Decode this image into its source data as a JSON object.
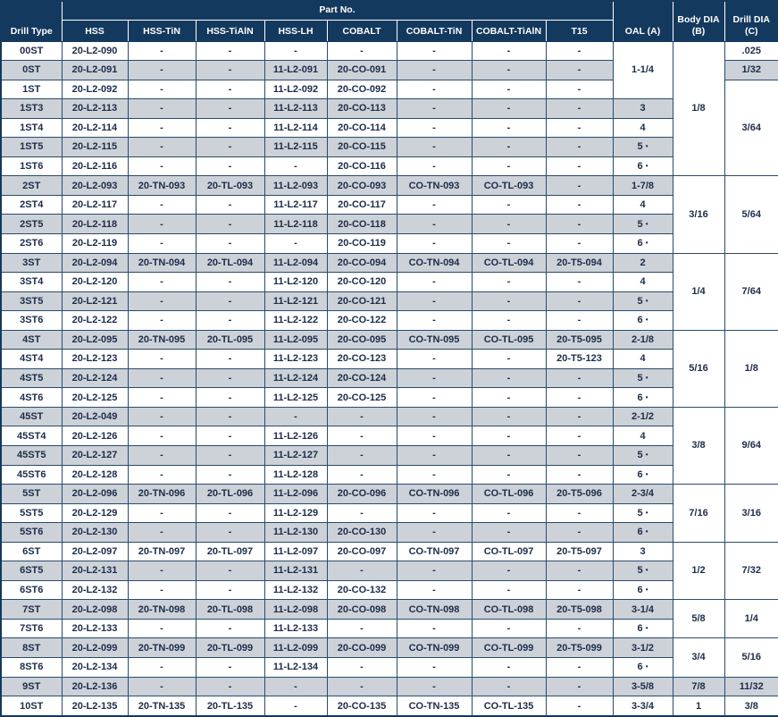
{
  "colors": {
    "header_bg": "#14395e",
    "header_text": "#ffffff",
    "row_alt_bg": "#ccd2d8",
    "grid_line": "#2a4a6b",
    "cell_text": "#1c2c49"
  },
  "table": {
    "header": {
      "drill_type": "Drill Type",
      "part_no": "Part No.",
      "part_columns": [
        "HSS",
        "HSS-TiN",
        "HSS-TiAlN",
        "HSS-LH",
        "COBALT",
        "COBALT-TiN",
        "COBALT-TiAlN",
        "T15"
      ],
      "oal": "OAL (A)",
      "body_dia": "Body DIA (B)",
      "drill_dia": "Drill DIA (C)"
    },
    "rows": [
      {
        "drill_type": "00ST",
        "parts": [
          "20-L2-090",
          "-",
          "-",
          "-",
          "-",
          "-",
          "-",
          "-"
        ],
        "oal": {
          "v": "1-1/4",
          "span": 3
        },
        "body": {
          "v": "1/8",
          "span": 7
        },
        "drill": {
          "v": ".025",
          "span": 1
        }
      },
      {
        "drill_type": "0ST",
        "parts": [
          "20-L2-091",
          "-",
          "-",
          "11-L2-091",
          "20-CO-091",
          "-",
          "-",
          "-"
        ],
        "drill": {
          "v": "1/32",
          "span": 1
        }
      },
      {
        "drill_type": "1ST",
        "parts": [
          "20-L2-092",
          "-",
          "-",
          "11-L2-092",
          "20-CO-092",
          "-",
          "-",
          "-"
        ],
        "drill": {
          "v": "3/64",
          "span": 5
        }
      },
      {
        "drill_type": "1ST3",
        "parts": [
          "20-L2-113",
          "-",
          "-",
          "11-L2-113",
          "20-CO-113",
          "-",
          "-",
          "-"
        ],
        "oal": {
          "v": "3",
          "span": 1
        }
      },
      {
        "drill_type": "1ST4",
        "parts": [
          "20-L2-114",
          "-",
          "-",
          "11-L2-114",
          "20-CO-114",
          "-",
          "-",
          "-"
        ],
        "oal": {
          "v": "4",
          "span": 1
        }
      },
      {
        "drill_type": "1ST5",
        "parts": [
          "20-L2-115",
          "-",
          "-",
          "11-L2-115",
          "20-CO-115",
          "-",
          "-",
          "-"
        ],
        "oal": {
          "v": "5 •",
          "span": 1
        }
      },
      {
        "drill_type": "1ST6",
        "parts": [
          "20-L2-116",
          "-",
          "-",
          "-",
          "20-CO-116",
          "-",
          "-",
          "-"
        ],
        "oal": {
          "v": "6 •",
          "span": 1
        }
      },
      {
        "drill_type": "2ST",
        "parts": [
          "20-L2-093",
          "20-TN-093",
          "20-TL-093",
          "11-L2-093",
          "20-CO-093",
          "CO-TN-093",
          "CO-TL-093",
          "-"
        ],
        "oal": {
          "v": "1-7/8",
          "span": 1
        },
        "body": {
          "v": "3/16",
          "span": 4
        },
        "drill": {
          "v": "5/64",
          "span": 4
        }
      },
      {
        "drill_type": "2ST4",
        "parts": [
          "20-L2-117",
          "-",
          "-",
          "11-L2-117",
          "20-CO-117",
          "-",
          "-",
          "-"
        ],
        "oal": {
          "v": "4",
          "span": 1
        }
      },
      {
        "drill_type": "2ST5",
        "parts": [
          "20-L2-118",
          "-",
          "-",
          "11-L2-118",
          "20-CO-118",
          "-",
          "-",
          "-"
        ],
        "oal": {
          "v": "5 •",
          "span": 1
        }
      },
      {
        "drill_type": "2ST6",
        "parts": [
          "20-L2-119",
          "-",
          "-",
          "-",
          "20-CO-119",
          "-",
          "-",
          "-"
        ],
        "oal": {
          "v": "6 •",
          "span": 1
        }
      },
      {
        "drill_type": "3ST",
        "parts": [
          "20-L2-094",
          "20-TN-094",
          "20-TL-094",
          "11-L2-094",
          "20-CO-094",
          "CO-TN-094",
          "CO-TL-094",
          "20-T5-094"
        ],
        "oal": {
          "v": "2",
          "span": 1
        },
        "body": {
          "v": "1/4",
          "span": 4
        },
        "drill": {
          "v": "7/64",
          "span": 4
        }
      },
      {
        "drill_type": "3ST4",
        "parts": [
          "20-L2-120",
          "-",
          "-",
          "11-L2-120",
          "20-CO-120",
          "-",
          "-",
          "-"
        ],
        "oal": {
          "v": "4",
          "span": 1
        }
      },
      {
        "drill_type": "3ST5",
        "parts": [
          "20-L2-121",
          "-",
          "-",
          "11-L2-121",
          "20-CO-121",
          "-",
          "-",
          "-"
        ],
        "oal": {
          "v": "5 •",
          "span": 1
        }
      },
      {
        "drill_type": "3ST6",
        "parts": [
          "20-L2-122",
          "-",
          "-",
          "11-L2-122",
          "20-CO-122",
          "-",
          "-",
          "-"
        ],
        "oal": {
          "v": "6 •",
          "span": 1
        }
      },
      {
        "drill_type": "4ST",
        "parts": [
          "20-L2-095",
          "20-TN-095",
          "20-TL-095",
          "11-L2-095",
          "20-CO-095",
          "CO-TN-095",
          "CO-TL-095",
          "20-T5-095"
        ],
        "oal": {
          "v": "2-1/8",
          "span": 1
        },
        "body": {
          "v": "5/16",
          "span": 4
        },
        "drill": {
          "v": "1/8",
          "span": 4
        }
      },
      {
        "drill_type": "4ST4",
        "parts": [
          "20-L2-123",
          "-",
          "-",
          "11-L2-123",
          "20-CO-123",
          "-",
          "-",
          "20-T5-123"
        ],
        "oal": {
          "v": "4",
          "span": 1
        }
      },
      {
        "drill_type": "4ST5",
        "parts": [
          "20-L2-124",
          "-",
          "-",
          "11-L2-124",
          "20-CO-124",
          "-",
          "-",
          "-"
        ],
        "oal": {
          "v": "5 •",
          "span": 1
        }
      },
      {
        "drill_type": "4ST6",
        "parts": [
          "20-L2-125",
          "-",
          "-",
          "11-L2-125",
          "20-CO-125",
          "-",
          "-",
          "-"
        ],
        "oal": {
          "v": "6 •",
          "span": 1
        }
      },
      {
        "drill_type": "45ST",
        "parts": [
          "20-L2-049",
          "-",
          "-",
          "-",
          "-",
          "-",
          "-",
          "-"
        ],
        "oal": {
          "v": "2-1/2",
          "span": 1
        },
        "body": {
          "v": "3/8",
          "span": 4
        },
        "drill": {
          "v": "9/64",
          "span": 4
        }
      },
      {
        "drill_type": "45ST4",
        "parts": [
          "20-L2-126",
          "-",
          "-",
          "11-L2-126",
          "-",
          "-",
          "-",
          "-"
        ],
        "oal": {
          "v": "4",
          "span": 1
        }
      },
      {
        "drill_type": "45ST5",
        "parts": [
          "20-L2-127",
          "-",
          "-",
          "11-L2-127",
          "-",
          "-",
          "-",
          "-"
        ],
        "oal": {
          "v": "5 •",
          "span": 1
        }
      },
      {
        "drill_type": "45ST6",
        "parts": [
          "20-L2-128",
          "-",
          "-",
          "11-L2-128",
          "-",
          "-",
          "-",
          "-"
        ],
        "oal": {
          "v": "6 •",
          "span": 1
        }
      },
      {
        "drill_type": "5ST",
        "parts": [
          "20-L2-096",
          "20-TN-096",
          "20-TL-096",
          "11-L2-096",
          "20-CO-096",
          "CO-TN-096",
          "CO-TL-096",
          "20-T5-096"
        ],
        "oal": {
          "v": "2-3/4",
          "span": 1
        },
        "body": {
          "v": "7/16",
          "span": 3
        },
        "drill": {
          "v": "3/16",
          "span": 3
        }
      },
      {
        "drill_type": "5ST5",
        "parts": [
          "20-L2-129",
          "-",
          "-",
          "11-L2-129",
          "-",
          "-",
          "-",
          "-"
        ],
        "oal": {
          "v": "5 •",
          "span": 1
        }
      },
      {
        "drill_type": "5ST6",
        "parts": [
          "20-L2-130",
          "-",
          "-",
          "11-L2-130",
          "20-CO-130",
          "-",
          "-",
          "-"
        ],
        "oal": {
          "v": "6 •",
          "span": 1
        }
      },
      {
        "drill_type": "6ST",
        "parts": [
          "20-L2-097",
          "20-TN-097",
          "20-TL-097",
          "11-L2-097",
          "20-CO-097",
          "CO-TN-097",
          "CO-TL-097",
          "20-T5-097"
        ],
        "oal": {
          "v": "3",
          "span": 1
        },
        "body": {
          "v": "1/2",
          "span": 3
        },
        "drill": {
          "v": "7/32",
          "span": 3
        }
      },
      {
        "drill_type": "6ST5",
        "parts": [
          "20-L2-131",
          "-",
          "-",
          "11-L2-131",
          "-",
          "-",
          "-",
          "-"
        ],
        "oal": {
          "v": "5 •",
          "span": 1
        }
      },
      {
        "drill_type": "6ST6",
        "parts": [
          "20-L2-132",
          "-",
          "-",
          "11-L2-132",
          "20-CO-132",
          "-",
          "-",
          "-"
        ],
        "oal": {
          "v": "6 •",
          "span": 1
        }
      },
      {
        "drill_type": "7ST",
        "parts": [
          "20-L2-098",
          "20-TN-098",
          "20-TL-098",
          "11-L2-098",
          "20-CO-098",
          "CO-TN-098",
          "CO-TL-098",
          "20-T5-098"
        ],
        "oal": {
          "v": "3-1/4",
          "span": 1
        },
        "body": {
          "v": "5/8",
          "span": 2
        },
        "drill": {
          "v": "1/4",
          "span": 2
        }
      },
      {
        "drill_type": "7ST6",
        "parts": [
          "20-L2-133",
          "-",
          "-",
          "11-L2-133",
          "-",
          "-",
          "-",
          "-"
        ],
        "oal": {
          "v": "6 •",
          "span": 1
        }
      },
      {
        "drill_type": "8ST",
        "parts": [
          "20-L2-099",
          "20-TN-099",
          "20-TL-099",
          "11-L2-099",
          "20-CO-099",
          "CO-TN-099",
          "CO-TL-099",
          "20-T5-099"
        ],
        "oal": {
          "v": "3-1/2",
          "span": 1
        },
        "body": {
          "v": "3/4",
          "span": 2
        },
        "drill": {
          "v": "5/16",
          "span": 2
        }
      },
      {
        "drill_type": "8ST6",
        "parts": [
          "20-L2-134",
          "-",
          "-",
          "11-L2-134",
          "-",
          "-",
          "-",
          "-"
        ],
        "oal": {
          "v": "6 •",
          "span": 1
        }
      },
      {
        "drill_type": "9ST",
        "parts": [
          "20-L2-136",
          "-",
          "-",
          "-",
          "-",
          "-",
          "-",
          "-"
        ],
        "oal": {
          "v": "3-5/8",
          "span": 1
        },
        "body": {
          "v": "7/8",
          "span": 1
        },
        "drill": {
          "v": "11/32",
          "span": 1
        }
      },
      {
        "drill_type": "10ST",
        "parts": [
          "20-L2-135",
          "20-TN-135",
          "20-TL-135",
          "-",
          "20-CO-135",
          "CO-TN-135",
          "CO-TL-135",
          "-"
        ],
        "oal": {
          "v": "3-3/4",
          "span": 1
        },
        "body": {
          "v": "1",
          "span": 1
        },
        "drill": {
          "v": "3/8",
          "span": 1
        }
      }
    ]
  }
}
